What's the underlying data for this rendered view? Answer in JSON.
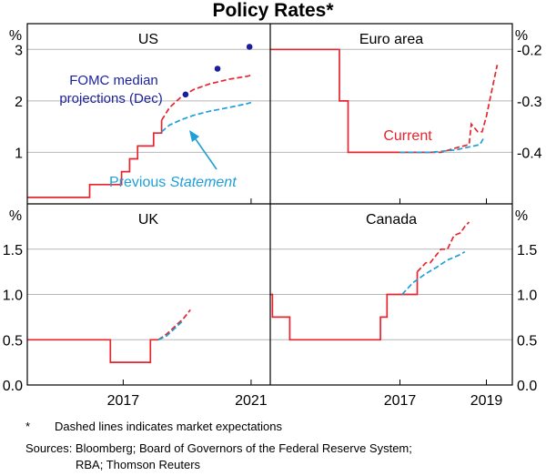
{
  "chart_data": {
    "title": "Policy Rates*",
    "type": "line",
    "colors": {
      "current": "#e8242e",
      "previous": "#1e9fd8",
      "fomc": "#1a1f9e",
      "grid": "#b7b7b7"
    },
    "panels": [
      {
        "id": "us",
        "title": "US",
        "axis_side": "left",
        "unit": "%",
        "ylim": [
          0,
          3.5
        ],
        "ticks": [
          1,
          2,
          3
        ],
        "tick_labels": [
          "1",
          "2",
          "3"
        ],
        "xlim": [
          2014.0,
          2021.6
        ],
        "x_tick": 2021,
        "x_tick_label": "2021",
        "series": [
          {
            "name": "Actual",
            "style": "solid",
            "color_key": "current",
            "x": [
              2014.0,
              2015.95,
              2015.95,
              2016.95,
              2016.95,
              2017.2,
              2017.2,
              2017.45,
              2017.45,
              2017.95,
              2017.95,
              2018.2,
              2018.2
            ],
            "y": [
              0.125,
              0.125,
              0.375,
              0.375,
              0.625,
              0.625,
              0.875,
              0.875,
              1.125,
              1.125,
              1.375,
              1.375,
              1.625
            ]
          },
          {
            "name": "Current",
            "style": "dashed",
            "color_key": "current",
            "x": [
              2018.2,
              2018.45,
              2018.8,
              2019.2,
              2019.7,
              2020.3,
              2020.9,
              2021.0
            ],
            "y": [
              1.625,
              1.87,
              2.07,
              2.22,
              2.33,
              2.42,
              2.48,
              2.5
            ]
          },
          {
            "name": "Previous Statement",
            "style": "dashed",
            "color_key": "previous",
            "x": [
              2018.2,
              2018.45,
              2018.8,
              2019.2,
              2019.7,
              2020.3,
              2020.9,
              2021.0
            ],
            "y": [
              1.4,
              1.53,
              1.63,
              1.72,
              1.8,
              1.87,
              1.95,
              1.97
            ]
          },
          {
            "name": "FOMC median projections (Dec)",
            "style": "dots",
            "color_key": "fomc",
            "x": [
              2018.95,
              2019.95,
              2020.95
            ],
            "y": [
              2.125,
              2.625,
              3.05
            ]
          }
        ],
        "annotations": [
          {
            "lines": [
              "FOMC median",
              "projections (Dec)"
            ],
            "color_key": "fomc"
          },
          {
            "lines": [
              "Previous ",
              "Statement"
            ],
            "italic_second": true,
            "color_key": "previous"
          }
        ]
      },
      {
        "id": "euro",
        "title": "Euro area",
        "axis_side": "right",
        "unit": "%",
        "ylim": [
          -0.5,
          -0.15
        ],
        "ticks": [
          -0.2,
          -0.3,
          -0.4
        ],
        "tick_labels": [
          "-0.2",
          "-0.3",
          "-0.4"
        ],
        "xlim": [
          2014.0,
          2019.6
        ],
        "x_tick": 2017,
        "x_tick_label": "2017",
        "x_tick2": 2019,
        "x_tick2_label": "2019",
        "series": [
          {
            "name": "Actual",
            "style": "solid",
            "color_key": "current",
            "x": [
              2014.0,
              2015.6,
              2015.6,
              2015.8,
              2015.8,
              2016.2,
              2016.2,
              2017.7
            ],
            "y": [
              -0.2,
              -0.2,
              -0.3,
              -0.3,
              -0.4,
              -0.4,
              -0.4,
              -0.4
            ]
          },
          {
            "name": "Current",
            "style": "dashed",
            "color_key": "current",
            "x": [
              2017.7,
              2017.95,
              2018.15,
              2018.35,
              2018.6,
              2018.65,
              2018.8,
              2018.9,
              2019.0,
              2019.15,
              2019.25
            ],
            "y": [
              -0.4,
              -0.4,
              -0.395,
              -0.39,
              -0.385,
              -0.345,
              -0.36,
              -0.36,
              -0.33,
              -0.27,
              -0.23
            ]
          },
          {
            "name": "Previous Statement",
            "style": "dashed",
            "color_key": "previous",
            "x": [
              2017.0,
              2017.7,
              2018.3,
              2018.85,
              2018.95
            ],
            "y": [
              -0.4,
              -0.4,
              -0.395,
              -0.385,
              -0.37
            ]
          }
        ],
        "annotations": [
          {
            "lines": [
              "Current"
            ],
            "color_key": "current"
          }
        ]
      },
      {
        "id": "uk",
        "title": "UK",
        "axis_side": "left",
        "unit": "%",
        "ylim": [
          0,
          2.0
        ],
        "ticks": [
          0.0,
          0.5,
          1.0,
          1.5
        ],
        "tick_labels": [
          "0.0",
          "0.5",
          "1.0",
          "1.5"
        ],
        "xlim": [
          2014.0,
          2021.6
        ],
        "x_tick": 2017,
        "x_tick_label": "2017",
        "series": [
          {
            "name": "Actual",
            "style": "solid",
            "color_key": "current",
            "x": [
              2014.0,
              2016.6,
              2016.6,
              2017.85,
              2017.85,
              2018.1
            ],
            "y": [
              0.5,
              0.5,
              0.25,
              0.25,
              0.5,
              0.5
            ]
          },
          {
            "name": "Current",
            "style": "dashed",
            "color_key": "current",
            "x": [
              2018.1,
              2018.35,
              2018.6,
              2018.9,
              2019.1
            ],
            "y": [
              0.5,
              0.56,
              0.64,
              0.74,
              0.83
            ]
          },
          {
            "name": "Previous Statement",
            "style": "dashed",
            "color_key": "previous",
            "x": [
              2018.1,
              2018.35,
              2018.6,
              2018.9
            ],
            "y": [
              0.5,
              0.54,
              0.62,
              0.72
            ]
          }
        ]
      },
      {
        "id": "canada",
        "title": "Canada",
        "axis_side": "right",
        "unit": "%",
        "ylim": [
          0,
          2.0
        ],
        "ticks": [
          0.0,
          0.5,
          1.0,
          1.5
        ],
        "tick_labels": [
          "0.0",
          "0.5",
          "1.0",
          "1.5"
        ],
        "xlim": [
          2014.0,
          2019.6
        ],
        "x_tick": 2017,
        "x_tick_label": "2017",
        "x_tick2": 2019,
        "x_tick2_label": "2019",
        "series": [
          {
            "name": "Actual",
            "style": "solid",
            "color_key": "current",
            "x": [
              2014.0,
              2014.05,
              2014.05,
              2014.45,
              2014.45,
              2016.55,
              2016.55,
              2016.7,
              2016.7,
              2016.85,
              2016.85,
              2017.4,
              2017.4
            ],
            "y": [
              1.0,
              1.0,
              0.75,
              0.75,
              0.5,
              0.5,
              0.75,
              0.75,
              1.0,
              1.0,
              1.0,
              1.0,
              1.25
            ]
          },
          {
            "name": "Current",
            "style": "dashed",
            "color_key": "current",
            "x": [
              2017.4,
              2017.6,
              2017.7,
              2017.95,
              2018.1,
              2018.25,
              2018.4,
              2018.5,
              2018.6
            ],
            "y": [
              1.25,
              1.35,
              1.35,
              1.5,
              1.5,
              1.65,
              1.68,
              1.75,
              1.8
            ]
          },
          {
            "name": "Previous Statement",
            "style": "dashed",
            "color_key": "previous",
            "x": [
              2017.05,
              2017.3,
              2017.6,
              2017.85,
              2018.1,
              2018.35,
              2018.5
            ],
            "y": [
              1.0,
              1.13,
              1.23,
              1.3,
              1.38,
              1.43,
              1.47
            ]
          }
        ]
      }
    ]
  },
  "footnote": {
    "marker": "*",
    "text": "Dashed lines indicates market expectations"
  },
  "sources": {
    "line1": "Sources: Bloomberg; Board of Governors of the Federal Reserve System;",
    "line2": "RBA; Thomson Reuters"
  }
}
